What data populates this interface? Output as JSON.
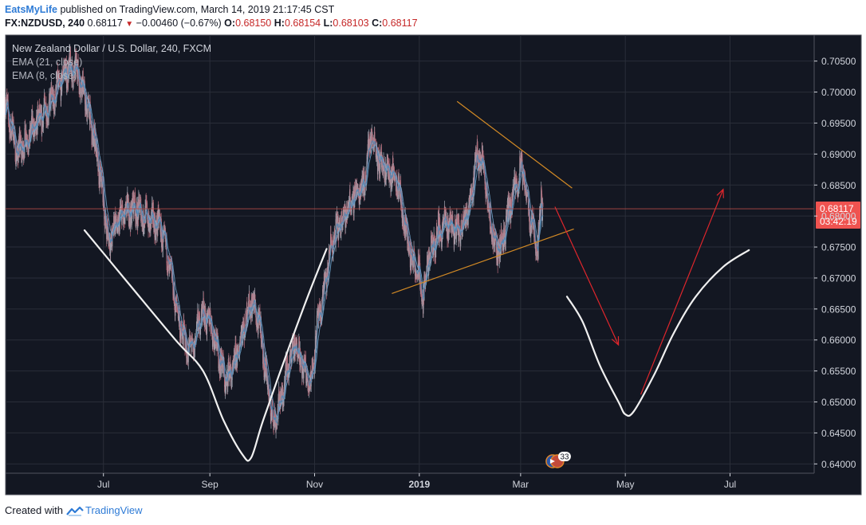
{
  "header": {
    "author": "EatsMyLife",
    "published_text": "published on TradingView.com, March 14, 2019 21:17:45 CST"
  },
  "quote": {
    "symbol_interval": "FX:NZDUSD, 240",
    "last": "0.68117",
    "change": "−0.00460 (−0.67%)",
    "change_direction_icon": "down-triangle-icon",
    "o_label": "O:",
    "o_value": "0.68150",
    "h_label": "H:",
    "h_value": "0.68154",
    "l_label": "L:",
    "l_value": "0.68103",
    "c_label": "C:",
    "c_value": "0.68117"
  },
  "footer": {
    "created_with": "Created with",
    "brand": "TradingView"
  },
  "colors": {
    "panel_bg": "#131722",
    "grid": "#2a2e39",
    "axis_text": "#d1d4dc",
    "candle_up": "#a2a7b3",
    "candle_down": "#b56a78",
    "ema_fast": "#4f86b4",
    "ema_slow": "#6fa3cc",
    "trendline": "#d38a25",
    "projection_arrow": "#e0262c",
    "drawing_curve": "#f0f0f0",
    "price_label_bg": "#ef5350",
    "price_line": "#b24a45",
    "border": "#50535e"
  },
  "chart_data": {
    "type": "candlestick",
    "title": "New Zealand Dollar / U.S. Dollar, 240, FXCM",
    "indicators": [
      "EMA (21, close)",
      "EMA (8, close)"
    ],
    "y_axis": {
      "ticks": [
        "0.70500",
        "0.70000",
        "0.69500",
        "0.69000",
        "0.68500",
        "0.68000",
        "0.67500",
        "0.67000",
        "0.66500",
        "0.66000",
        "0.65500",
        "0.65000",
        "0.64500",
        "0.64000"
      ],
      "range": [
        0.6385,
        0.7092
      ]
    },
    "x_axis": {
      "ticks": [
        "Jul",
        "Sep",
        "Nov",
        "2019",
        "Mar",
        "May",
        "Jul"
      ],
      "tick_dates": [
        "2018-07-01",
        "2018-09-01",
        "2018-11-01",
        "2019-01-01",
        "2019-03-01",
        "2019-05-01",
        "2019-07-01"
      ],
      "bold_ticks": [
        "2019"
      ],
      "range": [
        "2018-05-05",
        "2019-08-19"
      ]
    },
    "current_price": {
      "value": 0.68117,
      "label": "0.68117",
      "countdown": "03:42:19"
    },
    "events_badge": {
      "icon": "flag-icon",
      "count": "33",
      "date": "2019-03-21"
    },
    "series_close_path": [
      [
        "2018-05-05",
        0.698
      ],
      [
        "2018-05-12",
        0.69
      ],
      [
        "2018-05-20",
        0.6935
      ],
      [
        "2018-05-27",
        0.6965
      ],
      [
        "2018-06-02",
        0.699
      ],
      [
        "2018-06-09",
        0.7035
      ],
      [
        "2018-06-16",
        0.7035
      ],
      [
        "2018-06-21",
        0.6985
      ],
      [
        "2018-06-26",
        0.692
      ],
      [
        "2018-07-01",
        0.683
      ],
      [
        "2018-07-04",
        0.6755
      ],
      [
        "2018-07-07",
        0.678
      ],
      [
        "2018-07-12",
        0.68
      ],
      [
        "2018-07-19",
        0.6815
      ],
      [
        "2018-07-27",
        0.6795
      ],
      [
        "2018-08-03",
        0.6785
      ],
      [
        "2018-08-08",
        0.6725
      ],
      [
        "2018-08-14",
        0.663
      ],
      [
        "2018-08-18",
        0.659
      ],
      [
        "2018-08-22",
        0.6585
      ],
      [
        "2018-08-27",
        0.6645
      ],
      [
        "2018-09-02",
        0.6625
      ],
      [
        "2018-09-06",
        0.658
      ],
      [
        "2018-09-10",
        0.6535
      ],
      [
        "2018-09-15",
        0.6555
      ],
      [
        "2018-09-20",
        0.6615
      ],
      [
        "2018-09-25",
        0.6665
      ],
      [
        "2018-09-30",
        0.6625
      ],
      [
        "2018-10-04",
        0.654
      ],
      [
        "2018-10-08",
        0.6465
      ],
      [
        "2018-10-12",
        0.65
      ],
      [
        "2018-10-17",
        0.6565
      ],
      [
        "2018-10-21",
        0.6595
      ],
      [
        "2018-10-26",
        0.655
      ],
      [
        "2018-10-30",
        0.653
      ],
      [
        "2018-11-02",
        0.661
      ],
      [
        "2018-11-06",
        0.667
      ],
      [
        "2018-11-11",
        0.6755
      ],
      [
        "2018-11-16",
        0.679
      ],
      [
        "2018-11-21",
        0.6815
      ],
      [
        "2018-11-26",
        0.684
      ],
      [
        "2018-11-30",
        0.6855
      ],
      [
        "2018-12-04",
        0.6935
      ],
      [
        "2018-12-09",
        0.6885
      ],
      [
        "2018-12-14",
        0.687
      ],
      [
        "2018-12-19",
        0.6865
      ],
      [
        "2018-12-23",
        0.6795
      ],
      [
        "2018-12-28",
        0.6725
      ],
      [
        "2019-01-01",
        0.6705
      ],
      [
        "2019-01-03",
        0.6665
      ],
      [
        "2019-01-06",
        0.6725
      ],
      [
        "2019-01-12",
        0.6775
      ],
      [
        "2019-01-18",
        0.679
      ],
      [
        "2019-01-24",
        0.6775
      ],
      [
        "2019-01-30",
        0.6815
      ],
      [
        "2019-02-04",
        0.69
      ],
      [
        "2019-02-07",
        0.689
      ],
      [
        "2019-02-11",
        0.6795
      ],
      [
        "2019-02-15",
        0.6745
      ],
      [
        "2019-02-18",
        0.6755
      ],
      [
        "2019-02-22",
        0.6805
      ],
      [
        "2019-02-26",
        0.6845
      ],
      [
        "2019-03-01",
        0.6875
      ],
      [
        "2019-03-03",
        0.6865
      ],
      [
        "2019-03-06",
        0.6805
      ],
      [
        "2019-03-09",
        0.6775
      ],
      [
        "2019-03-11",
        0.6745
      ],
      [
        "2019-03-13",
        0.6835
      ],
      [
        "2019-03-14",
        0.6812
      ]
    ],
    "drawings": {
      "upper_trendline": [
        [
          "2019-01-23",
          0.6985
        ],
        [
          "2019-03-31",
          0.6845
        ]
      ],
      "lower_trendline": [
        [
          "2018-12-16",
          0.6675
        ],
        [
          "2019-04-01",
          0.6779
        ]
      ],
      "arrow_down": [
        [
          "2019-03-21",
          0.6815
        ],
        [
          "2019-04-27",
          0.6592
        ]
      ],
      "arrow_up": [
        [
          "2019-05-10",
          0.6512
        ],
        [
          "2019-06-27",
          0.6843
        ]
      ],
      "past_v_curve": [
        [
          "2018-06-20",
          0.6777
        ],
        [
          "2018-07-13",
          0.67
        ],
        [
          "2018-08-12",
          0.66
        ],
        [
          "2018-08-28",
          0.655
        ],
        [
          "2018-09-09",
          0.647
        ],
        [
          "2018-09-20",
          0.6415
        ],
        [
          "2018-09-25",
          0.641
        ],
        [
          "2018-10-02",
          0.647
        ],
        [
          "2018-10-16",
          0.658
        ],
        [
          "2018-10-28",
          0.667
        ],
        [
          "2018-11-08",
          0.6747
        ]
      ],
      "future_v_curve": [
        [
          "2019-03-28",
          0.667
        ],
        [
          "2019-04-06",
          0.663
        ],
        [
          "2019-04-16",
          0.656
        ],
        [
          "2019-04-27",
          0.65
        ],
        [
          "2019-05-01",
          0.648
        ],
        [
          "2019-05-06",
          0.6485
        ],
        [
          "2019-05-18",
          0.6545
        ],
        [
          "2019-05-29",
          0.661
        ],
        [
          "2019-06-11",
          0.667
        ],
        [
          "2019-06-27",
          0.6718
        ],
        [
          "2019-07-12",
          0.6745
        ]
      ]
    }
  }
}
